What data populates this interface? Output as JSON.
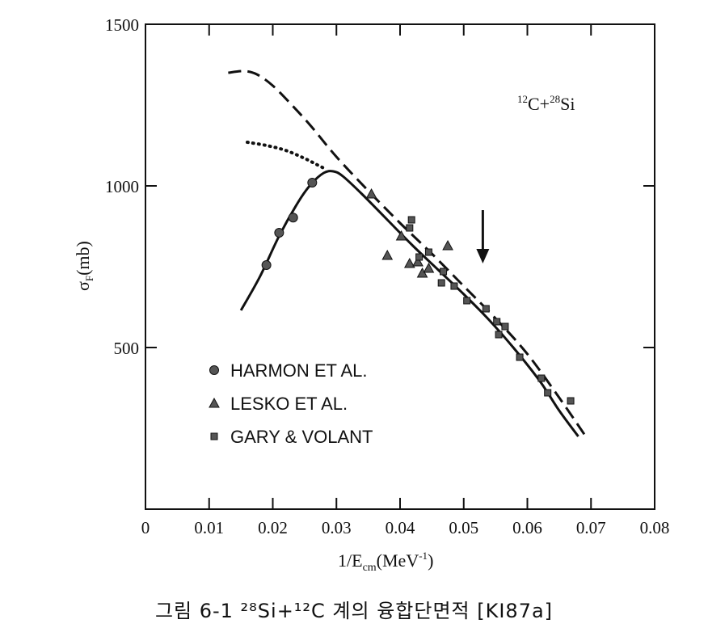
{
  "chart_data": {
    "type": "scatter",
    "title": "",
    "annotation": {
      "text_a": "12",
      "text_b": "C+",
      "text_c": "28",
      "text_d": "Si"
    },
    "xlabel": {
      "a": "1/E",
      "sub": "cm",
      "b": "(MeV",
      "sup": "-1",
      "c": ")"
    },
    "ylabel": {
      "a": "σ",
      "sub": "F",
      "b": "(mb)"
    },
    "xlim": [
      0,
      0.08
    ],
    "ylim": [
      0,
      1500
    ],
    "x_ticks": [
      0,
      0.01,
      0.02,
      0.03,
      0.04,
      0.05,
      0.06,
      0.07,
      0.08
    ],
    "x_tick_labels": [
      "0",
      "0.01",
      "0.02",
      "0.03",
      "0.04",
      "0.05",
      "0.06",
      "0.07",
      "0.08"
    ],
    "y_ticks": [
      500,
      1000,
      1500
    ],
    "y_tick_labels": [
      "500",
      "1000",
      "1500"
    ],
    "legend": {
      "placement": "lower-left",
      "entries": [
        {
          "marker": "circle",
          "label": "HARMON ET AL."
        },
        {
          "marker": "triangle",
          "label": "LESKO ET AL."
        },
        {
          "marker": "square",
          "label": "GARY & VOLANT"
        }
      ]
    },
    "series": [
      {
        "marker": "circle",
        "points": [
          [
            0.019,
            755
          ],
          [
            0.021,
            855
          ],
          [
            0.0232,
            902
          ],
          [
            0.0262,
            1010
          ]
        ]
      },
      {
        "marker": "triangle",
        "points": [
          [
            0.0355,
            975
          ],
          [
            0.038,
            785
          ],
          [
            0.0402,
            845
          ],
          [
            0.0415,
            760
          ],
          [
            0.0428,
            765
          ],
          [
            0.0435,
            730
          ],
          [
            0.0445,
            745
          ],
          [
            0.0475,
            815
          ]
        ]
      },
      {
        "marker": "square",
        "points": [
          [
            0.0415,
            870
          ],
          [
            0.0418,
            895
          ],
          [
            0.043,
            780
          ],
          [
            0.0445,
            795
          ],
          [
            0.0465,
            700
          ],
          [
            0.0468,
            735
          ],
          [
            0.0485,
            690
          ],
          [
            0.0505,
            645
          ],
          [
            0.0535,
            620
          ],
          [
            0.0552,
            580
          ],
          [
            0.0555,
            540
          ],
          [
            0.0565,
            565
          ],
          [
            0.0588,
            470
          ],
          [
            0.0622,
            405
          ],
          [
            0.0632,
            360
          ],
          [
            0.0668,
            335
          ]
        ]
      }
    ],
    "curves": [
      {
        "style": "solid",
        "points": [
          [
            0.015,
            615
          ],
          [
            0.018,
            720
          ],
          [
            0.021,
            845
          ],
          [
            0.024,
            950
          ],
          [
            0.026,
            1005
          ],
          [
            0.028,
            1040
          ],
          [
            0.0295,
            1045
          ],
          [
            0.031,
            1030
          ],
          [
            0.034,
            975
          ],
          [
            0.038,
            895
          ],
          [
            0.042,
            815
          ],
          [
            0.046,
            740
          ],
          [
            0.05,
            665
          ],
          [
            0.054,
            585
          ],
          [
            0.058,
            495
          ],
          [
            0.062,
            395
          ],
          [
            0.065,
            305
          ],
          [
            0.068,
            225
          ]
        ]
      },
      {
        "style": "dashed",
        "points": [
          [
            0.013,
            1350
          ],
          [
            0.0155,
            1355
          ],
          [
            0.0175,
            1345
          ],
          [
            0.02,
            1310
          ],
          [
            0.023,
            1250
          ],
          [
            0.026,
            1185
          ],
          [
            0.03,
            1090
          ],
          [
            0.035,
            985
          ],
          [
            0.04,
            885
          ],
          [
            0.045,
            790
          ],
          [
            0.05,
            690
          ],
          [
            0.055,
            590
          ],
          [
            0.06,
            480
          ],
          [
            0.065,
            345
          ],
          [
            0.069,
            230
          ]
        ]
      },
      {
        "style": "dotted",
        "points": [
          [
            0.016,
            1135
          ],
          [
            0.019,
            1125
          ],
          [
            0.022,
            1110
          ],
          [
            0.025,
            1085
          ],
          [
            0.027,
            1065
          ],
          [
            0.0285,
            1050
          ]
        ]
      }
    ],
    "arrow": {
      "x": 0.053,
      "y_start": 925,
      "y_end": 765,
      "direction": "down"
    },
    "caption": "그림 6-1  ²⁸Si+¹²C 계의 융합단면적 [KI87a]"
  }
}
